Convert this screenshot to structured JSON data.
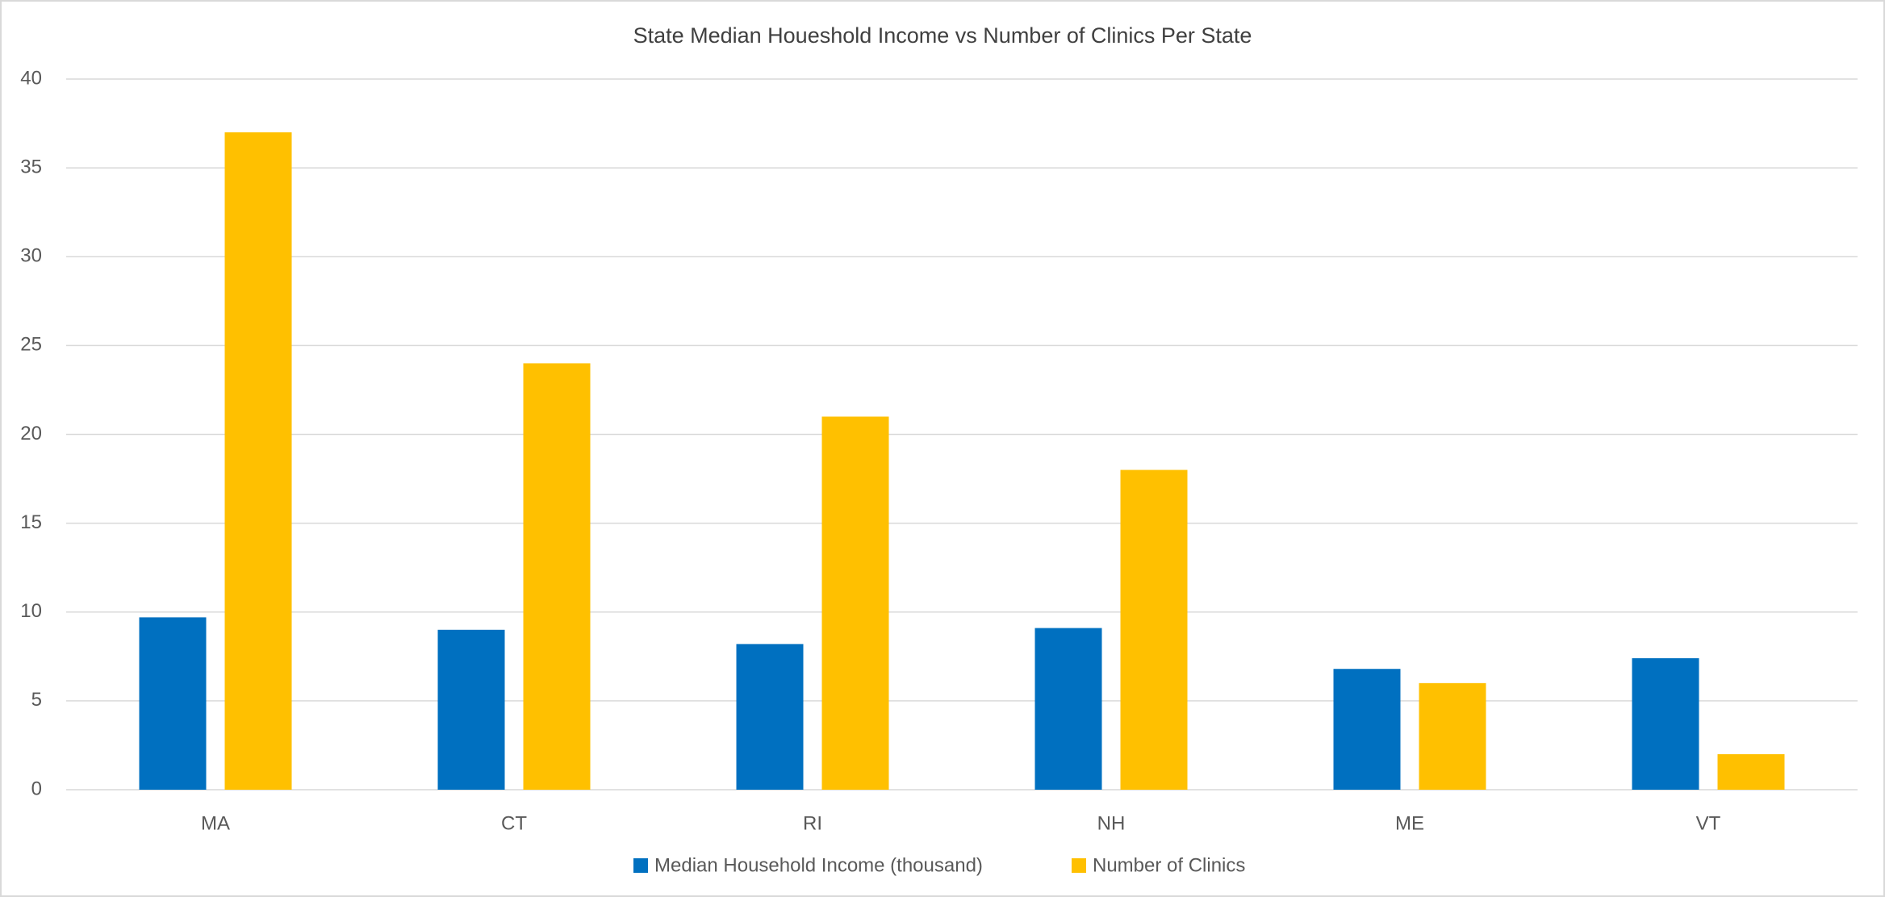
{
  "chart_data": {
    "type": "bar",
    "title": "State Median Houeshold Income vs Number of Clinics Per State",
    "categories": [
      "MA",
      "CT",
      "RI",
      "NH",
      "ME",
      "VT"
    ],
    "series": [
      {
        "name": "Median Household Income (thousand)",
        "color": "#0070c0",
        "values": [
          9.7,
          9.0,
          8.2,
          9.1,
          6.8,
          7.4
        ]
      },
      {
        "name": "Number of Clinics",
        "color": "#ffc000",
        "values": [
          37,
          24,
          21,
          18,
          6,
          2
        ]
      }
    ],
    "ylim": [
      0,
      40
    ],
    "yticks": [
      0,
      5,
      10,
      15,
      20,
      25,
      30,
      35,
      40
    ],
    "grid": true,
    "legend": "bottom"
  }
}
